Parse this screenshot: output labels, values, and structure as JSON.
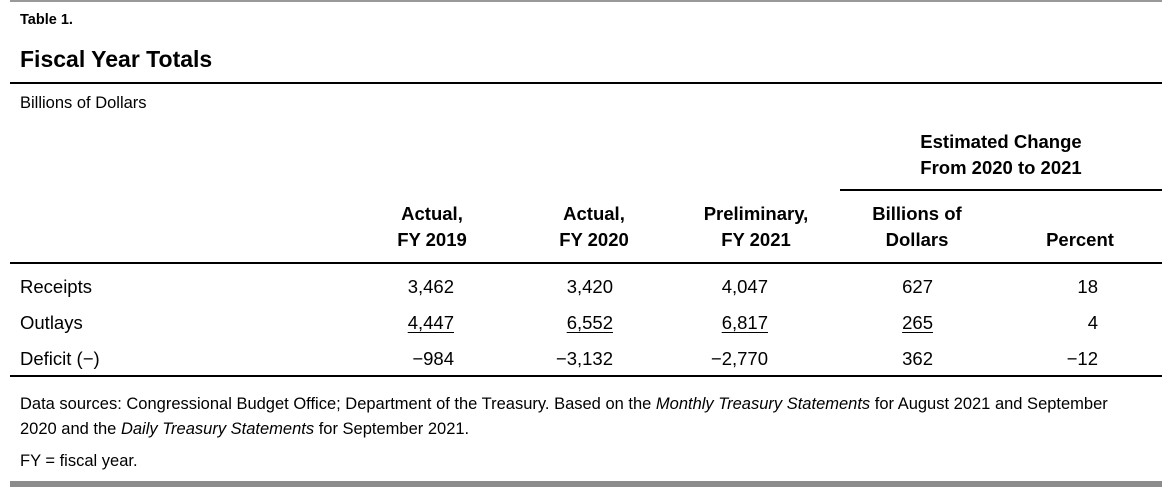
{
  "table_number": "Table 1.",
  "title": "Fiscal Year Totals",
  "units": "Billions of Dollars",
  "group_header": {
    "line1": "Estimated Change",
    "line2": "From 2020 to 2021"
  },
  "columns": [
    {
      "line1": "Actual,",
      "line2": "FY 2019"
    },
    {
      "line1": "Actual,",
      "line2": "FY 2020"
    },
    {
      "line1": "Preliminary,",
      "line2": "FY 2021"
    },
    {
      "line1": "Billions of",
      "line2": "Dollars"
    },
    {
      "line1": "",
      "line2": "Percent"
    }
  ],
  "rows": [
    {
      "label": "Receipts",
      "values": [
        "3,462",
        "3,420",
        "4,047",
        "627",
        "18"
      ]
    },
    {
      "label": "Outlays",
      "values": [
        "4,447",
        "6,552",
        "6,817",
        "265",
        "4"
      ]
    },
    {
      "label": "Deficit (−)",
      "values": [
        "−984",
        "−3,132",
        "−2,770",
        "362",
        "−12"
      ]
    }
  ],
  "notes": {
    "source_p1": "Data sources: Congressional Budget Office; Department of the Treasury. Based on the ",
    "source_i1": "Monthly Treasury Statements",
    "source_p2": " for August 2021 and September 2020 and the ",
    "source_i2": "Daily Treasury Statements",
    "source_p3": " for September 2021.",
    "abbrev": "FY = fiscal year."
  }
}
